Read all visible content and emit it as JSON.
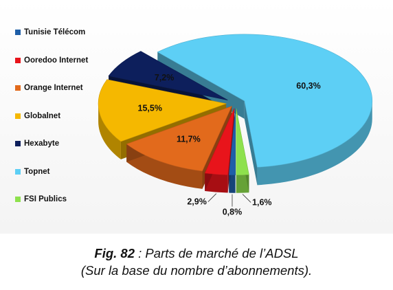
{
  "chart_data": {
    "type": "pie",
    "style": "3d-exploded",
    "categories": [
      "Tunisie Télécom",
      "Ooredoo Internet",
      "Orange Internet",
      "Globalnet",
      "Hexabyte",
      "Topnet",
      "FSI Publics"
    ],
    "values": [
      0.8,
      2.9,
      11.7,
      15.5,
      7.2,
      60.3,
      1.6
    ],
    "data_labels": [
      "0,8%",
      "2,9%",
      "11,7%",
      "15,5%",
      "7,2%",
      "60,3%",
      "1,6%"
    ],
    "colors": [
      "#1f5fa8",
      "#e8141b",
      "#e26a1c",
      "#f5b800",
      "#0d1f5c",
      "#5dcff5",
      "#8ee14d"
    ],
    "legend_position": "left"
  },
  "caption": {
    "figure_number": "Fig. 82",
    "line1_rest": " : Parts de marché de l’ADSL",
    "line2": "(Sur la base du nombre d’abonnements)."
  }
}
